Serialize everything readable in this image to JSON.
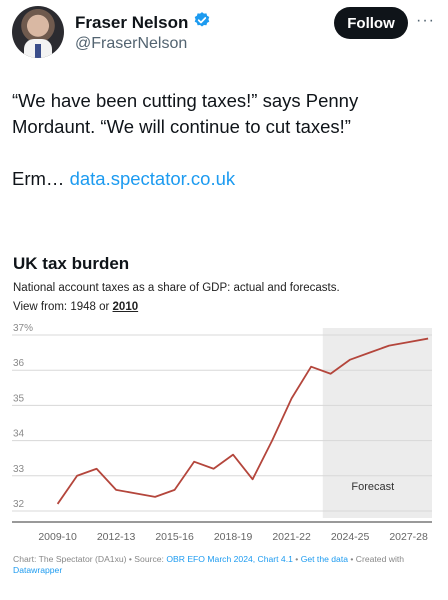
{
  "profile": {
    "name": "Fraser Nelson",
    "handle": "@FraserNelson",
    "follow_label": "Follow",
    "more_label": "···"
  },
  "tweet": {
    "line1": "“We have been cutting taxes!” says Penny Mordaunt. “We will continue to cut taxes!”",
    "line2_prefix": "Erm… ",
    "link_text": "data.spectator.co.uk"
  },
  "chart": {
    "title": "UK tax burden",
    "subtitle": "National account taxes as a share of GDP: actual and forecasts.",
    "view_prefix": "View from: ",
    "view_option_1": "1948",
    "view_or": " or ",
    "view_option_2": "2010",
    "forecast_label": "Forecast",
    "footer_source_prefix": "Chart: The Spectator (DA1xu) • Source: ",
    "footer_source_link": "OBR EFO March 2024, Chart 4.1",
    "footer_sep": " • ",
    "footer_get_data": "Get the data",
    "footer_created": " • Created with ",
    "footer_tool": "Datawrapper"
  },
  "chart_data": {
    "type": "line",
    "title": "UK tax burden",
    "y_tick_labels": [
      "37%",
      "36",
      "35",
      "34",
      "33",
      "32"
    ],
    "y_ticks": [
      37,
      36,
      35,
      34,
      33,
      32
    ],
    "ylim": [
      31.8,
      37.2
    ],
    "x_tick_labels": [
      "2009-10",
      "2012-13",
      "2015-16",
      "2018-19",
      "2021-22",
      "2024-25",
      "2027-28"
    ],
    "x_ticks": [
      2009,
      2012,
      2015,
      2018,
      2021,
      2024,
      2027
    ],
    "xlim": [
      2008.2,
      2028.2
    ],
    "forecast_start": 2022.6,
    "x": [
      2009,
      2010,
      2011,
      2012,
      2013,
      2014,
      2015,
      2016,
      2017,
      2018,
      2019,
      2020,
      2021,
      2022,
      2023,
      2024,
      2025,
      2026,
      2027,
      2028
    ],
    "values": [
      32.2,
      33.0,
      33.2,
      32.6,
      32.5,
      32.4,
      32.6,
      33.4,
      33.2,
      33.6,
      32.9,
      34.0,
      35.2,
      36.1,
      35.9,
      36.3,
      36.5,
      36.7,
      36.8,
      36.9
    ],
    "line_color": "#b4463c",
    "forecast_shade": "#ececec",
    "grid": true
  }
}
